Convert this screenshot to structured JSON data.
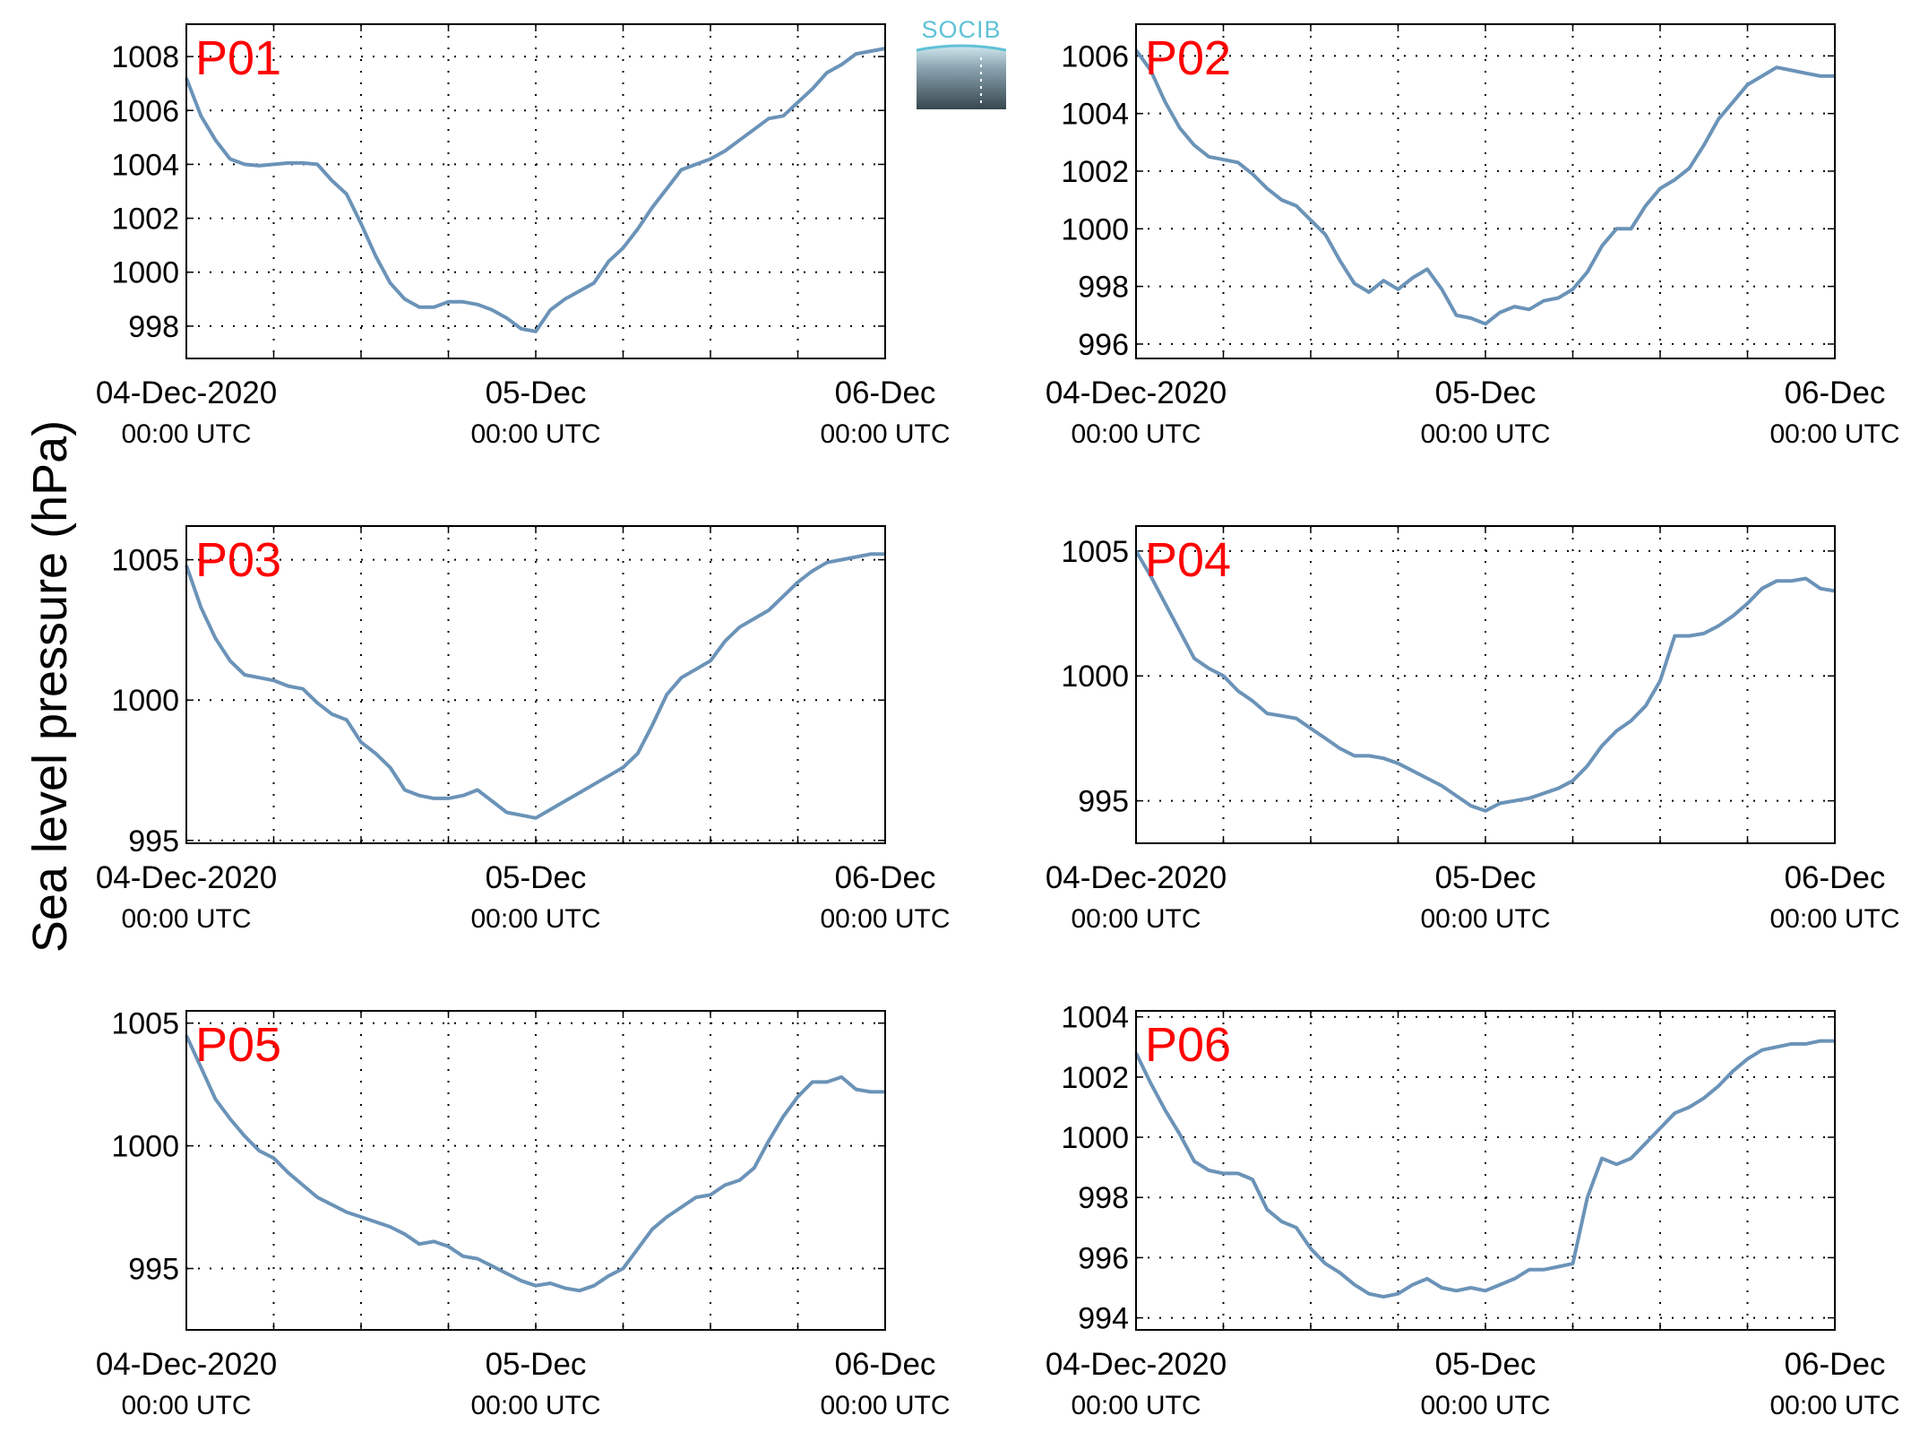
{
  "figure": {
    "ylabel": "Sea level pressure (hPa)",
    "logo_text": "SOCIB",
    "line_color": "#6b93b8",
    "label_color": "#ff0000"
  },
  "chart_data": [
    {
      "type": "line",
      "title": "P01",
      "xticks": [
        {
          "value": 0,
          "line1": "04-Dec-2020",
          "line2": "00:00 UTC"
        },
        {
          "value": 24,
          "line1": "05-Dec",
          "line2": "00:00 UTC"
        },
        {
          "value": 48,
          "line1": "06-Dec",
          "line2": "00:00 UTC"
        }
      ],
      "x_unit": "hours after 04-Dec-2020 00:00 UTC",
      "xlim": [
        0,
        48
      ],
      "ylim": [
        996.8,
        1009.2
      ],
      "yticks": [
        998,
        1000,
        1002,
        1004,
        1006,
        1008
      ],
      "grid": true,
      "x": [
        0,
        1,
        2,
        3,
        4,
        5,
        6,
        7,
        8,
        9,
        10,
        11,
        12,
        13,
        14,
        15,
        16,
        17,
        18,
        19,
        20,
        21,
        22,
        23,
        24,
        25,
        26,
        27,
        28,
        29,
        30,
        31,
        32,
        33,
        34,
        35,
        36,
        37,
        38,
        39,
        40,
        41,
        42,
        43,
        44,
        45,
        46,
        47,
        48
      ],
      "y": [
        1007.2,
        1005.8,
        1004.9,
        1004.2,
        1004.0,
        1003.95,
        1004.0,
        1004.05,
        1004.05,
        1004.0,
        1003.4,
        1002.9,
        1001.8,
        1000.6,
        999.6,
        999.0,
        998.7,
        998.7,
        998.9,
        998.9,
        998.8,
        998.6,
        998.3,
        997.9,
        997.8,
        998.6,
        999.0,
        999.3,
        999.6,
        1000.4,
        1000.9,
        1001.6,
        1002.4,
        1003.1,
        1003.8,
        1004.0,
        1004.2,
        1004.5,
        1004.9,
        1005.3,
        1005.7,
        1005.8,
        1006.3,
        1006.8,
        1007.4,
        1007.7,
        1008.1,
        1008.2,
        1008.3
      ]
    },
    {
      "type": "line",
      "title": "P02",
      "xticks": [
        {
          "value": 0,
          "line1": "04-Dec-2020",
          "line2": "00:00 UTC"
        },
        {
          "value": 24,
          "line1": "05-Dec",
          "line2": "00:00 UTC"
        },
        {
          "value": 48,
          "line1": "06-Dec",
          "line2": "00:00 UTC"
        }
      ],
      "x_unit": "hours after 04-Dec-2020 00:00 UTC",
      "xlim": [
        0,
        48
      ],
      "ylim": [
        995.5,
        1007.1
      ],
      "yticks": [
        996,
        998,
        1000,
        1002,
        1004,
        1006
      ],
      "grid": true,
      "x": [
        0,
        1,
        2,
        3,
        4,
        5,
        6,
        7,
        8,
        9,
        10,
        11,
        12,
        13,
        14,
        15,
        16,
        17,
        18,
        19,
        20,
        21,
        22,
        23,
        24,
        25,
        26,
        27,
        28,
        29,
        30,
        31,
        32,
        33,
        34,
        35,
        36,
        37,
        38,
        39,
        40,
        41,
        42,
        43,
        44,
        45,
        46,
        47,
        48
      ],
      "y": [
        1006.2,
        1005.5,
        1004.4,
        1003.5,
        1002.9,
        1002.5,
        1002.4,
        1002.3,
        1001.9,
        1001.4,
        1001.0,
        1000.8,
        1000.3,
        999.8,
        998.9,
        998.1,
        997.8,
        998.2,
        997.9,
        998.3,
        998.6,
        997.9,
        997.0,
        996.9,
        996.7,
        997.1,
        997.3,
        997.2,
        997.5,
        997.6,
        997.9,
        998.5,
        999.4,
        1000.0,
        1000.0,
        1000.8,
        1001.4,
        1001.7,
        1002.1,
        1002.9,
        1003.8,
        1004.4,
        1005.0,
        1005.3,
        1005.6,
        1005.5,
        1005.4,
        1005.3,
        1005.3
      ]
    },
    {
      "type": "line",
      "title": "P03",
      "xticks": [
        {
          "value": 0,
          "line1": "04-Dec-2020",
          "line2": "00:00 UTC"
        },
        {
          "value": 24,
          "line1": "05-Dec",
          "line2": "00:00 UTC"
        },
        {
          "value": 48,
          "line1": "06-Dec",
          "line2": "00:00 UTC"
        }
      ],
      "x_unit": "hours after 04-Dec-2020 00:00 UTC",
      "xlim": [
        0,
        48
      ],
      "ylim": [
        994.9,
        1006.2
      ],
      "yticks": [
        995,
        1000,
        1005
      ],
      "grid": true,
      "x": [
        0,
        1,
        2,
        3,
        4,
        5,
        6,
        7,
        8,
        9,
        10,
        11,
        12,
        13,
        14,
        15,
        16,
        17,
        18,
        19,
        20,
        21,
        22,
        23,
        24,
        25,
        26,
        27,
        28,
        29,
        30,
        31,
        32,
        33,
        34,
        35,
        36,
        37,
        38,
        39,
        40,
        41,
        42,
        43,
        44,
        45,
        46,
        47,
        48
      ],
      "y": [
        1004.8,
        1003.3,
        1002.2,
        1001.4,
        1000.9,
        1000.8,
        1000.7,
        1000.5,
        1000.4,
        999.9,
        999.5,
        999.3,
        998.5,
        998.1,
        997.6,
        996.8,
        996.6,
        996.5,
        996.5,
        996.6,
        996.8,
        996.4,
        996.0,
        995.9,
        995.8,
        996.1,
        996.4,
        996.7,
        997.0,
        997.3,
        997.6,
        998.1,
        999.1,
        1000.2,
        1000.8,
        1001.1,
        1001.4,
        1002.1,
        1002.6,
        1002.9,
        1003.2,
        1003.7,
        1004.2,
        1004.6,
        1004.9,
        1005.0,
        1005.1,
        1005.2,
        1005.2
      ]
    },
    {
      "type": "line",
      "title": "P04",
      "xticks": [
        {
          "value": 0,
          "line1": "04-Dec-2020",
          "line2": "00:00 UTC"
        },
        {
          "value": 24,
          "line1": "05-Dec",
          "line2": "00:00 UTC"
        },
        {
          "value": 48,
          "line1": "06-Dec",
          "line2": "00:00 UTC"
        }
      ],
      "x_unit": "hours after 04-Dec-2020 00:00 UTC",
      "xlim": [
        0,
        48
      ],
      "ylim": [
        993.3,
        1006.0
      ],
      "yticks": [
        995,
        1000,
        1005
      ],
      "grid": true,
      "x": [
        0,
        1,
        2,
        3,
        4,
        5,
        6,
        7,
        8,
        9,
        10,
        11,
        12,
        13,
        14,
        15,
        16,
        17,
        18,
        19,
        20,
        21,
        22,
        23,
        24,
        25,
        26,
        27,
        28,
        29,
        30,
        31,
        32,
        33,
        34,
        35,
        36,
        37,
        38,
        39,
        40,
        41,
        42,
        43,
        44,
        45,
        46,
        47,
        48
      ],
      "y": [
        1005.0,
        1004.0,
        1002.9,
        1001.8,
        1000.7,
        1000.3,
        1000.0,
        999.4,
        999.0,
        998.5,
        998.4,
        998.3,
        997.9,
        997.5,
        997.1,
        996.8,
        996.8,
        996.7,
        996.5,
        996.2,
        995.9,
        995.6,
        995.2,
        994.8,
        994.6,
        994.9,
        995.0,
        995.1,
        995.3,
        995.5,
        995.8,
        996.4,
        997.2,
        997.8,
        998.2,
        998.8,
        999.8,
        1001.6,
        1001.6,
        1001.7,
        1002.0,
        1002.4,
        1002.9,
        1003.5,
        1003.8,
        1003.8,
        1003.9,
        1003.5,
        1003.4
      ]
    },
    {
      "type": "line",
      "title": "P05",
      "xticks": [
        {
          "value": 0,
          "line1": "04-Dec-2020",
          "line2": "00:00 UTC"
        },
        {
          "value": 24,
          "line1": "05-Dec",
          "line2": "00:00 UTC"
        },
        {
          "value": 48,
          "line1": "06-Dec",
          "line2": "00:00 UTC"
        }
      ],
      "x_unit": "hours after 04-Dec-2020 00:00 UTC",
      "xlim": [
        0,
        48
      ],
      "ylim": [
        992.5,
        1005.5
      ],
      "yticks": [
        995,
        1000,
        1005
      ],
      "grid": true,
      "x": [
        0,
        1,
        2,
        3,
        4,
        5,
        6,
        7,
        8,
        9,
        10,
        11,
        12,
        13,
        14,
        15,
        16,
        17,
        18,
        19,
        20,
        21,
        22,
        23,
        24,
        25,
        26,
        27,
        28,
        29,
        30,
        31,
        32,
        33,
        34,
        35,
        36,
        37,
        38,
        39,
        40,
        41,
        42,
        43,
        44,
        45,
        46,
        47,
        48
      ],
      "y": [
        1004.5,
        1003.2,
        1001.9,
        1001.1,
        1000.4,
        999.8,
        999.5,
        998.9,
        998.4,
        997.9,
        997.6,
        997.3,
        997.1,
        996.9,
        996.7,
        996.4,
        996.0,
        996.1,
        995.9,
        995.5,
        995.4,
        995.1,
        994.8,
        994.5,
        994.3,
        994.4,
        994.2,
        994.1,
        994.3,
        994.7,
        995.0,
        995.8,
        996.6,
        997.1,
        997.5,
        997.9,
        998.0,
        998.4,
        998.6,
        999.1,
        1000.2,
        1001.2,
        1002.0,
        1002.6,
        1002.6,
        1002.8,
        1002.3,
        1002.2,
        1002.2
      ]
    },
    {
      "type": "line",
      "title": "P06",
      "xticks": [
        {
          "value": 0,
          "line1": "04-Dec-2020",
          "line2": "00:00 UTC"
        },
        {
          "value": 24,
          "line1": "05-Dec",
          "line2": "00:00 UTC"
        },
        {
          "value": 48,
          "line1": "06-Dec",
          "line2": "00:00 UTC"
        }
      ],
      "x_unit": "hours after 04-Dec-2020 00:00 UTC",
      "xlim": [
        0,
        48
      ],
      "ylim": [
        993.6,
        1004.2
      ],
      "yticks": [
        994,
        996,
        998,
        1000,
        1002,
        1004
      ],
      "grid": true,
      "x": [
        0,
        1,
        2,
        3,
        4,
        5,
        6,
        7,
        8,
        9,
        10,
        11,
        12,
        13,
        14,
        15,
        16,
        17,
        18,
        19,
        20,
        21,
        22,
        23,
        24,
        25,
        26,
        27,
        28,
        29,
        30,
        31,
        32,
        33,
        34,
        35,
        36,
        37,
        38,
        39,
        40,
        41,
        42,
        43,
        44,
        45,
        46,
        47,
        48
      ],
      "y": [
        1002.8,
        1001.8,
        1000.9,
        1000.1,
        999.2,
        998.9,
        998.8,
        998.8,
        998.6,
        997.6,
        997.2,
        997.0,
        996.3,
        995.8,
        995.5,
        995.1,
        994.8,
        994.7,
        994.8,
        995.1,
        995.3,
        995.0,
        994.9,
        995.0,
        994.9,
        995.1,
        995.3,
        995.6,
        995.6,
        995.7,
        995.8,
        998.0,
        999.3,
        999.1,
        999.3,
        999.8,
        1000.3,
        1000.8,
        1001.0,
        1001.3,
        1001.7,
        1002.2,
        1002.6,
        1002.9,
        1003.0,
        1003.1,
        1003.1,
        1003.2,
        1003.2
      ]
    }
  ]
}
